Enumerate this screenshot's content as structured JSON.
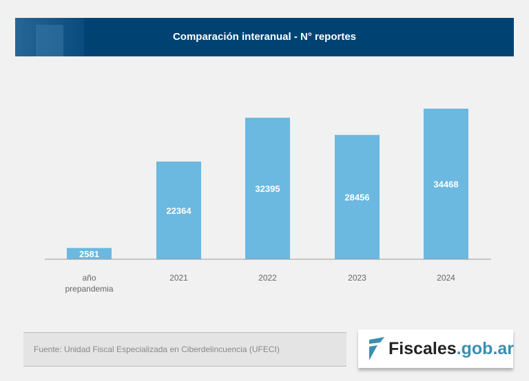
{
  "header": {
    "title": "Comparación interanual - N° reportes"
  },
  "chart_data": {
    "type": "bar",
    "title": "Comparación interanual - N° reportes",
    "categories": [
      "año prepandemia",
      "2021",
      "2022",
      "2023",
      "2024"
    ],
    "values": [
      2581,
      22364,
      32395,
      28456,
      34468
    ],
    "data_labels": [
      "2581",
      "22364",
      "32395",
      "28456",
      "34468"
    ],
    "ylim": [
      0,
      34468
    ],
    "grid": false,
    "bar_color": "#6bb8e0"
  },
  "footer": {
    "source": "Fuente: Unidad Fiscal Especializada en Ciberdelincuencia (UFECI)"
  },
  "logo": {
    "text_main": "Fiscales",
    "text_domain": ".gob.ar"
  }
}
